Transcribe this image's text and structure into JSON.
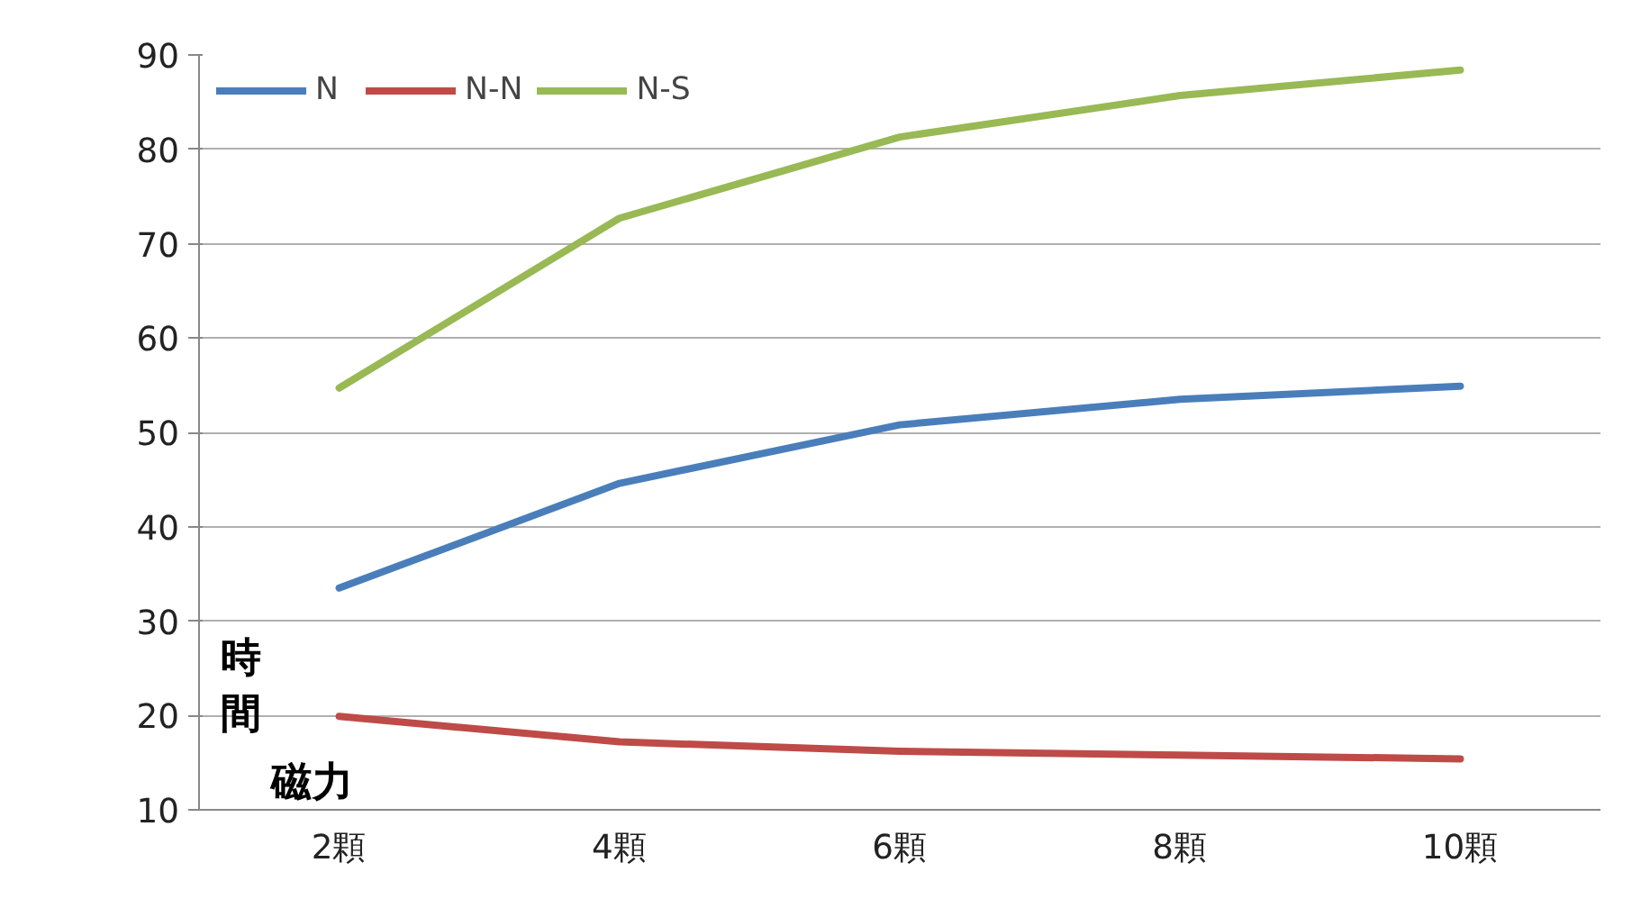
{
  "chart_data": {
    "type": "line",
    "xlabel": "磁力",
    "ylabel": "時間",
    "categories": [
      "2顆",
      "4顆",
      "6顆",
      "8顆",
      "10顆"
    ],
    "series": [
      {
        "name": "N",
        "color": "#4a7ebb",
        "values": [
          33.5,
          44.6,
          50.8,
          53.5,
          54.9
        ]
      },
      {
        "name": "N-N",
        "color": "#be4b48",
        "values": [
          19.9,
          17.2,
          16.2,
          15.8,
          15.4
        ]
      },
      {
        "name": "N-S",
        "color": "#98b954",
        "values": [
          54.7,
          72.7,
          81.3,
          85.7,
          88.4
        ]
      }
    ],
    "ylim": [
      10,
      90
    ],
    "yticks": [
      10,
      20,
      30,
      40,
      50,
      60,
      70,
      80,
      90
    ],
    "grid": "y",
    "legend": "top left",
    "marker": "none",
    "line_style": "solid"
  }
}
